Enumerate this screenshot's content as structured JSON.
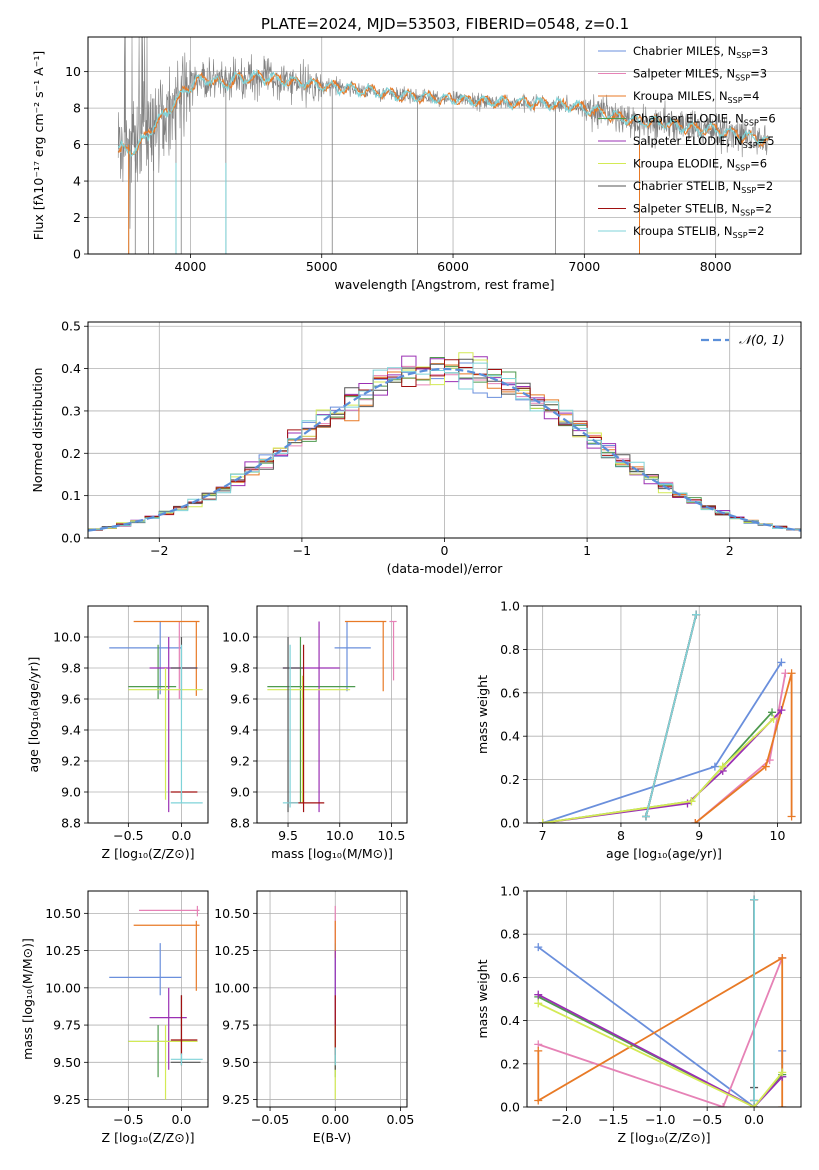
{
  "colors": {
    "Chabrier MILES": "#6a8fdc",
    "Salpeter MILES": "#e682b6",
    "Kroupa MILES": "#e87a26",
    "Chabrier ELODIE": "#4e9a4e",
    "Salpeter ELODIE": "#9b30b4",
    "Kroupa ELODIE": "#d3ea55",
    "Chabrier STELIB": "#555555",
    "Salpeter STELIB": "#a01010",
    "Kroupa STELIB": "#7fd3d8",
    "data": "#808080"
  },
  "chart_data": [
    {
      "id": "spectrum",
      "type": "line",
      "title": "PLATE=2024, MJD=53503, FIBERID=0548, z=0.1",
      "xlabel": "wavelength [Angstrom, rest frame]",
      "ylabel": "Flux [fλ10⁻¹⁷ erg cm⁻² s⁻¹ A⁻¹]",
      "xlim": [
        3220,
        8650
      ],
      "ylim": [
        0,
        11.9
      ],
      "xticks": [
        4000,
        5000,
        6000,
        7000,
        8000
      ],
      "yticks": [
        0,
        2,
        4,
        6,
        8,
        10
      ],
      "legend_position": "upper right",
      "legend": [
        {
          "name": "Chabrier MILES",
          "label": "Chabrier MILES, N",
          "sub": "SSP",
          "suffix": "=3"
        },
        {
          "name": "Salpeter MILES",
          "label": "Salpeter MILES, N",
          "sub": "SSP",
          "suffix": "=3"
        },
        {
          "name": "Kroupa MILES",
          "label": "Kroupa MILES, N",
          "sub": "SSP",
          "suffix": "=4"
        },
        {
          "name": "Chabrier ELODIE",
          "label": "Chabrier ELODIE, N",
          "sub": "SSP",
          "suffix": "=6"
        },
        {
          "name": "Salpeter ELODIE",
          "label": "Salpeter ELODIE, N",
          "sub": "SSP",
          "suffix": "=5"
        },
        {
          "name": "Kroupa ELODIE",
          "label": "Kroupa ELODIE, N",
          "sub": "SSP",
          "suffix": "=6"
        },
        {
          "name": "Chabrier STELIB",
          "label": "Chabrier STELIB, N",
          "sub": "SSP",
          "suffix": "=2"
        },
        {
          "name": "Salpeter STELIB",
          "label": "Salpeter STELIB, N",
          "sub": "SSP",
          "suffix": "=2"
        },
        {
          "name": "Kroupa STELIB",
          "label": "Kroupa STELIB, N",
          "sub": "SSP",
          "suffix": "=2"
        }
      ],
      "continuum": {
        "x": [
          3450,
          3550,
          3650,
          3750,
          3850,
          3950,
          4050,
          4150,
          4250,
          4350,
          4450,
          4550,
          4650,
          4750,
          4850,
          4950,
          5050,
          5200,
          5400,
          5600,
          5800,
          6000,
          6200,
          6400,
          6600,
          6800,
          7000,
          7200,
          7400,
          7600,
          7800,
          8000,
          8200,
          8400
        ],
        "y": [
          5.8,
          5.6,
          6.3,
          7.3,
          8.0,
          8.9,
          9.5,
          9.6,
          9.3,
          9.6,
          9.7,
          9.7,
          9.6,
          9.5,
          9.4,
          9.3,
          9.2,
          9.1,
          8.9,
          8.7,
          8.6,
          8.5,
          8.4,
          8.3,
          8.3,
          8.2,
          8.0,
          7.6,
          7.3,
          7.2,
          6.9,
          6.8,
          6.5,
          6.2
        ]
      },
      "spikes_down": [
        3530,
        3580,
        3680,
        3720,
        3890,
        3930,
        4270,
        5080,
        5730,
        6780,
        7420
      ]
    },
    {
      "id": "residuals",
      "type": "histogram",
      "xlabel": "(data-model)/error",
      "ylabel": "Normed distribution",
      "xlim": [
        -2.5,
        2.5
      ],
      "ylim": [
        0,
        0.51
      ],
      "xticks": [
        -2,
        -1,
        0,
        1,
        2
      ],
      "yticks": [
        0.0,
        0.1,
        0.2,
        0.3,
        0.4,
        0.5
      ],
      "legend_position": "upper right",
      "legend": [
        {
          "name": "normal",
          "label": "𝒩(0, 1)"
        }
      ],
      "bin_width": 0.1
    },
    {
      "id": "age_vs_Z",
      "type": "errorbar",
      "xlabel": "Z [log₁₀(Z/Z⊙)]",
      "ylabel": "age  [log₁₀(age/yr)]",
      "xlim": [
        -0.88,
        0.25
      ],
      "ylim": [
        8.8,
        10.2
      ],
      "xticks": [
        -0.5,
        0.0
      ],
      "yticks": [
        8.8,
        9.0,
        9.2,
        9.4,
        9.6,
        9.8,
        10.0
      ],
      "points": [
        {
          "series": "Chabrier MILES",
          "x": -0.2,
          "xlo": -0.68,
          "xhi": 0.0,
          "y": 9.93,
          "ylo": 9.63,
          "yhi": 10.1
        },
        {
          "series": "Salpeter MILES",
          "x": -0.02,
          "xlo": -0.02,
          "xhi": -0.02,
          "y": 9.8,
          "ylo": 9.6,
          "yhi": 10.1
        },
        {
          "series": "Kroupa MILES",
          "x": 0.14,
          "xlo": -0.45,
          "xhi": 0.17,
          "y": 10.1,
          "ylo": 9.62,
          "yhi": 10.1
        },
        {
          "series": "Chabrier ELODIE",
          "x": -0.22,
          "xlo": -0.5,
          "xhi": -0.05,
          "y": 9.68,
          "ylo": 9.6,
          "yhi": 9.95
        },
        {
          "series": "Salpeter ELODIE",
          "x": -0.12,
          "xlo": -0.3,
          "xhi": 0.15,
          "y": 9.8,
          "ylo": 8.87,
          "yhi": 10.0
        },
        {
          "series": "Kroupa ELODIE",
          "x": -0.15,
          "xlo": -0.5,
          "xhi": 0.2,
          "y": 9.66,
          "ylo": 8.95,
          "yhi": 9.8
        },
        {
          "series": "Chabrier STELIB",
          "x": 0.0,
          "xlo": -0.1,
          "xhi": 0.15,
          "y": 9.8,
          "ylo": 9.6,
          "yhi": 10.0
        },
        {
          "series": "Salpeter STELIB",
          "x": 0.0,
          "xlo": -0.1,
          "xhi": 0.15,
          "y": 9.0,
          "ylo": 8.95,
          "yhi": 9.0
        },
        {
          "series": "Kroupa STELIB",
          "x": 0.0,
          "xlo": -0.1,
          "xhi": 0.2,
          "y": 8.93,
          "ylo": 8.93,
          "yhi": 9.95
        }
      ]
    },
    {
      "id": "age_vs_mass",
      "type": "errorbar",
      "xlabel": "mass [log₁₀(M/M⊙)]",
      "ylabel": "",
      "xlim": [
        9.2,
        10.65
      ],
      "ylim": [
        8.8,
        10.2
      ],
      "xticks": [
        9.5,
        10.0,
        10.5
      ],
      "yticks": [
        8.8,
        9.0,
        9.2,
        9.4,
        9.6,
        9.8,
        10.0
      ],
      "points": [
        {
          "series": "Chabrier MILES",
          "x": 10.07,
          "xlo": 9.95,
          "xhi": 10.3,
          "y": 9.93,
          "ylo": 9.65,
          "yhi": 10.1
        },
        {
          "series": "Salpeter MILES",
          "x": 10.52,
          "xlo": 10.48,
          "xhi": 10.55,
          "y": 10.1,
          "ylo": 9.72,
          "yhi": 10.1
        },
        {
          "series": "Kroupa MILES",
          "x": 10.42,
          "xlo": 10.05,
          "xhi": 10.45,
          "y": 10.1,
          "ylo": 9.65,
          "yhi": 10.1
        },
        {
          "series": "Chabrier ELODIE",
          "x": 9.62,
          "xlo": 9.3,
          "xhi": 10.15,
          "y": 9.68,
          "ylo": 8.93,
          "yhi": 10.0
        },
        {
          "series": "Salpeter ELODIE",
          "x": 9.8,
          "xlo": 9.45,
          "xhi": 10.0,
          "y": 9.8,
          "ylo": 8.87,
          "yhi": 10.1
        },
        {
          "series": "Kroupa ELODIE",
          "x": 9.64,
          "xlo": 9.3,
          "xhi": 10.1,
          "y": 9.66,
          "ylo": 8.93,
          "yhi": 9.75
        },
        {
          "series": "Chabrier STELIB",
          "x": 9.5,
          "xlo": 9.45,
          "xhi": 9.65,
          "y": 9.8,
          "ylo": 8.87,
          "yhi": 10.0
        },
        {
          "series": "Salpeter STELIB",
          "x": 9.65,
          "xlo": 9.5,
          "xhi": 9.85,
          "y": 8.93,
          "ylo": 8.87,
          "yhi": 9.95
        },
        {
          "series": "Kroupa STELIB",
          "x": 9.52,
          "xlo": 9.45,
          "xhi": 9.6,
          "y": 8.93,
          "ylo": 8.9,
          "yhi": 9.95
        }
      ]
    },
    {
      "id": "weight_vs_age",
      "type": "line",
      "xlabel": "age  [log₁₀(age/yr)]",
      "ylabel": "mass weight",
      "xlim": [
        6.8,
        10.3
      ],
      "ylim": [
        0,
        1.0
      ],
      "xticks": [
        7,
        8,
        9,
        10
      ],
      "yticks": [
        0.0,
        0.2,
        0.4,
        0.6,
        0.8,
        1.0
      ],
      "series": [
        {
          "name": "Chabrier MILES",
          "x": [
            7.0,
            9.2,
            10.05
          ],
          "y": [
            0.0,
            0.26,
            0.74
          ]
        },
        {
          "name": "Salpeter MILES",
          "x": [
            8.95,
            9.9,
            10.1
          ],
          "y": [
            0.0,
            0.29,
            0.69
          ]
        },
        {
          "name": "Kroupa MILES",
          "x": [
            8.95,
            9.85,
            10.18,
            10.18
          ],
          "y": [
            0.0,
            0.26,
            0.69,
            0.03
          ]
        },
        {
          "name": "Chabrier ELODIE",
          "x": [
            7.0,
            8.9,
            9.3,
            9.93
          ],
          "y": [
            0.0,
            0.1,
            0.26,
            0.51
          ]
        },
        {
          "name": "Salpeter ELODIE",
          "x": [
            7.0,
            8.85,
            9.3,
            10.05
          ],
          "y": [
            0.0,
            0.09,
            0.24,
            0.52
          ]
        },
        {
          "name": "Kroupa ELODIE",
          "x": [
            7.0,
            8.9,
            9.3,
            9.95
          ],
          "y": [
            0.0,
            0.1,
            0.26,
            0.48
          ]
        },
        {
          "name": "Chabrier STELIB",
          "x": [
            8.32,
            8.96
          ],
          "y": [
            0.03,
            0.96
          ]
        },
        {
          "name": "Salpeter STELIB",
          "x": [
            8.32,
            8.96
          ],
          "y": [
            0.03,
            0.96
          ]
        },
        {
          "name": "Kroupa STELIB",
          "x": [
            8.32,
            8.96
          ],
          "y": [
            0.03,
            0.96
          ]
        }
      ]
    },
    {
      "id": "mass_vs_Z",
      "type": "errorbar",
      "xlabel": "Z [log₁₀(Z/Z⊙)]",
      "ylabel": "mass [log₁₀(M/M⊙)]",
      "xlim": [
        -0.88,
        0.25
      ],
      "ylim": [
        9.2,
        10.65
      ],
      "xticks": [
        -0.5,
        0.0
      ],
      "yticks": [
        9.25,
        9.5,
        9.75,
        10.0,
        10.25,
        10.5
      ],
      "points": [
        {
          "series": "Chabrier MILES",
          "x": -0.2,
          "xlo": -0.68,
          "xhi": 0.0,
          "y": 10.07,
          "ylo": 9.95,
          "yhi": 10.3
        },
        {
          "series": "Salpeter MILES",
          "x": 0.15,
          "xlo": -0.4,
          "xhi": 0.17,
          "y": 10.52,
          "ylo": 10.48,
          "yhi": 10.55
        },
        {
          "series": "Kroupa MILES",
          "x": 0.14,
          "xlo": -0.45,
          "xhi": 0.17,
          "y": 10.42,
          "ylo": 9.98,
          "yhi": 10.45
        },
        {
          "series": "Chabrier ELODIE",
          "x": -0.22,
          "xlo": -0.5,
          "xhi": 0.15,
          "y": 9.64,
          "ylo": 9.4,
          "yhi": 9.75
        },
        {
          "series": "Salpeter ELODIE",
          "x": -0.12,
          "xlo": -0.3,
          "xhi": 0.05,
          "y": 9.8,
          "ylo": 9.45,
          "yhi": 10.0
        },
        {
          "series": "Kroupa ELODIE",
          "x": -0.15,
          "xlo": -0.5,
          "xhi": 0.15,
          "y": 9.64,
          "ylo": 9.25,
          "yhi": 9.75
        },
        {
          "series": "Chabrier STELIB",
          "x": 0.0,
          "xlo": -0.1,
          "xhi": 0.18,
          "y": 9.5,
          "ylo": 9.48,
          "yhi": 9.95
        },
        {
          "series": "Salpeter STELIB",
          "x": 0.0,
          "xlo": -0.1,
          "xhi": 0.15,
          "y": 9.65,
          "ylo": 9.55,
          "yhi": 9.95
        },
        {
          "series": "Kroupa STELIB",
          "x": 0.0,
          "xlo": -0.1,
          "xhi": 0.2,
          "y": 9.52,
          "ylo": 9.48,
          "yhi": 9.56
        }
      ]
    },
    {
      "id": "mass_vs_EBV",
      "type": "errorbar",
      "xlabel": "E(B-V)",
      "ylabel": "",
      "xlim": [
        -0.06,
        0.055
      ],
      "ylim": [
        9.2,
        10.65
      ],
      "xticks": [
        -0.05,
        0.0,
        0.05
      ],
      "yticks": [
        9.25,
        9.5,
        9.75,
        10.0,
        10.25,
        10.5
      ],
      "points": [
        {
          "series": "Chabrier MILES",
          "x": 0.0,
          "xlo": 0.0,
          "xhi": 0.0,
          "y": 10.07,
          "ylo": 9.95,
          "yhi": 10.3
        },
        {
          "series": "Salpeter MILES",
          "x": 0.0,
          "xlo": 0.0,
          "xhi": 0.0,
          "y": 10.52,
          "ylo": 10.3,
          "yhi": 10.55
        },
        {
          "series": "Kroupa MILES",
          "x": 0.0,
          "xlo": 0.0,
          "xhi": 0.0,
          "y": 10.42,
          "ylo": 10.2,
          "yhi": 10.45
        },
        {
          "series": "Chabrier ELODIE",
          "x": 0.0,
          "xlo": 0.0,
          "xhi": 0.0,
          "y": 9.64,
          "ylo": 9.4,
          "yhi": 9.75
        },
        {
          "series": "Salpeter ELODIE",
          "x": 0.0,
          "xlo": 0.0,
          "xhi": 0.0,
          "y": 9.8,
          "ylo": 9.45,
          "yhi": 10.25
        },
        {
          "series": "Kroupa ELODIE",
          "x": 0.0,
          "xlo": 0.0,
          "xhi": 0.0,
          "y": 9.64,
          "ylo": 9.25,
          "yhi": 9.75
        },
        {
          "series": "Chabrier STELIB",
          "x": 0.0,
          "xlo": 0.0,
          "xhi": 0.0,
          "y": 9.5,
          "ylo": 9.45,
          "yhi": 9.6
        },
        {
          "series": "Salpeter STELIB",
          "x": 0.0,
          "xlo": 0.0,
          "xhi": 0.0,
          "y": 9.65,
          "ylo": 9.55,
          "yhi": 9.95
        },
        {
          "series": "Kroupa STELIB",
          "x": 0.0,
          "xlo": 0.0,
          "xhi": 0.0,
          "y": 9.52,
          "ylo": 9.48,
          "yhi": 9.6
        }
      ]
    },
    {
      "id": "weight_vs_Z",
      "type": "line",
      "xlabel": "Z [log₁₀(Z/Z⊙)]",
      "ylabel": "mass weight",
      "xlim": [
        -2.42,
        0.5
      ],
      "ylim": [
        0,
        1.0
      ],
      "xticks": [
        -2.0,
        -1.5,
        -1.0,
        -0.5,
        0.0
      ],
      "yticks": [
        0.0,
        0.2,
        0.4,
        0.6,
        0.8,
        1.0
      ],
      "series": [
        {
          "name": "Chabrier MILES",
          "x": [
            -2.3,
            0.0,
            0.3,
            0.3
          ],
          "y": [
            0.74,
            0.0,
            0.14,
            0.26
          ]
        },
        {
          "name": "Salpeter MILES",
          "x": [
            -2.3,
            -0.33,
            0.3
          ],
          "y": [
            0.29,
            0.0,
            0.69
          ]
        },
        {
          "name": "Kroupa MILES",
          "x": [
            -2.3,
            -2.3,
            0.3,
            0.3
          ],
          "y": [
            0.26,
            0.03,
            0.69,
            0.0
          ]
        },
        {
          "name": "Chabrier ELODIE",
          "x": [
            -2.3,
            0.0,
            0.3
          ],
          "y": [
            0.51,
            0.0,
            0.15
          ]
        },
        {
          "name": "Salpeter ELODIE",
          "x": [
            -2.3,
            0.0,
            0.3
          ],
          "y": [
            0.52,
            0.0,
            0.14
          ]
        },
        {
          "name": "Kroupa ELODIE",
          "x": [
            -2.3,
            0.0,
            0.3
          ],
          "y": [
            0.48,
            0.0,
            0.16
          ]
        },
        {
          "name": "Chabrier STELIB",
          "x": [
            0.0,
            0.0
          ],
          "y": [
            0.09,
            0.96
          ]
        },
        {
          "name": "Salpeter STELIB",
          "x": [
            0.0,
            0.0
          ],
          "y": [
            0.03,
            0.96
          ]
        },
        {
          "name": "Kroupa STELIB",
          "x": [
            0.0,
            0.0
          ],
          "y": [
            0.03,
            0.96
          ]
        }
      ]
    }
  ]
}
